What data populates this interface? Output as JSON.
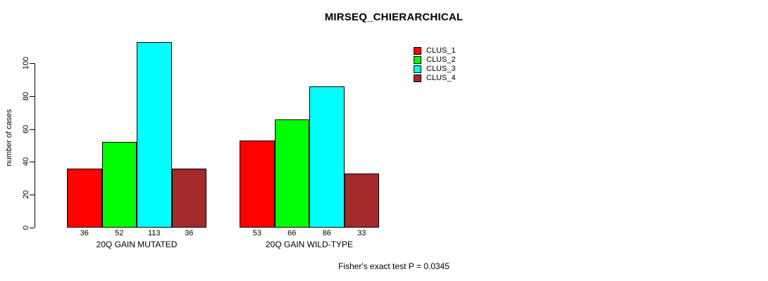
{
  "chart_data": {
    "type": "bar",
    "title": "MIRSEQ_CHIERARCHICAL",
    "ylabel": "number of cases",
    "xlabel": "",
    "categories": [
      "20Q GAIN MUTATED",
      "20Q GAIN WILD-TYPE"
    ],
    "series": [
      {
        "name": "CLUS_1",
        "color": "#ff0000",
        "values": [
          36,
          53
        ]
      },
      {
        "name": "CLUS_2",
        "color": "#00ff00",
        "values": [
          52,
          66
        ]
      },
      {
        "name": "CLUS_3",
        "color": "#00ffff",
        "values": [
          113,
          86
        ]
      },
      {
        "name": "CLUS_4",
        "color": "#a52a2a",
        "values": [
          36,
          33
        ]
      }
    ],
    "yticks": [
      0,
      20,
      40,
      60,
      80,
      100
    ],
    "ylim": [
      0,
      117
    ],
    "grid": false,
    "bar_value_labels_shown": true,
    "legend_position": "top-right",
    "annotation": "Fisher's exact test P = 0.0345"
  }
}
